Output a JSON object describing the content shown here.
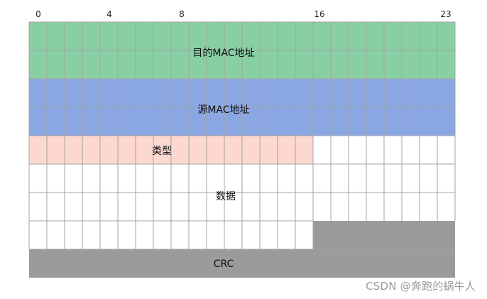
{
  "bit_ruler": [
    "0",
    "4",
    "8",
    "16",
    "23"
  ],
  "fields": {
    "dest_mac": {
      "label": "目的MAC地址",
      "color": "#88d0a4"
    },
    "src_mac": {
      "label": "源MAC地址",
      "color": "#8aa7e3"
    },
    "type": {
      "label": "类型",
      "color": "#fdd8d0"
    },
    "data": {
      "label": "数据",
      "color": "#ffffff"
    },
    "crc": {
      "label": "CRC",
      "color": "#9b9b9b"
    }
  },
  "watermark": "CSDN @奔跑的蜗牛人"
}
